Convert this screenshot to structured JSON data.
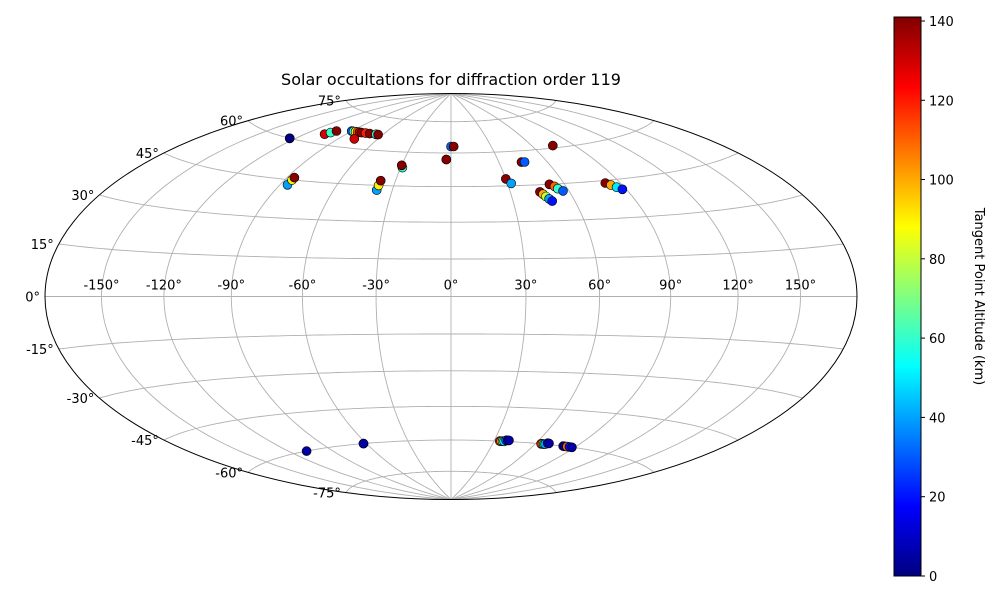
{
  "chart_data": {
    "type": "scatter",
    "projection": "hammer",
    "title": "Solar occultations for diffraction order 119",
    "x_ticks": [
      "-150°",
      "-120°",
      "-90°",
      "-60°",
      "-30°",
      "0°",
      "30°",
      "60°",
      "90°",
      "120°",
      "150°"
    ],
    "y_ticks": [
      "75°",
      "60°",
      "45°",
      "30°",
      "15°",
      "0°",
      "-15°",
      "-30°",
      "-45°",
      "-60°",
      "-75°"
    ],
    "grid": true,
    "colorbar": {
      "label": "Tangent Point Altitude (km)",
      "range": [
        0,
        141
      ],
      "ticks": [
        "0",
        "20",
        "40",
        "60",
        "80",
        "100",
        "120",
        "140"
      ],
      "colormap": "jet",
      "colors": [
        "#000080",
        "#0000ff",
        "#0080ff",
        "#00ffff",
        "#80ff80",
        "#ffff00",
        "#ff8000",
        "#ff0000",
        "#800000"
      ]
    },
    "series": [
      {
        "lon": [
          -124,
          -124
        ],
        "lat": [
          60,
          60
        ],
        "alt": [
          140,
          0
        ]
      },
      {
        "lon": [
          -106,
          -104,
          -102
        ],
        "lat": [
          64,
          65,
          66
        ],
        "alt": [
          130,
          60,
          140
        ]
      },
      {
        "lon": [
          -90,
          -88,
          -86,
          -84,
          -82,
          -80
        ],
        "lat": [
          67,
          67,
          67,
          67,
          67,
          67
        ],
        "alt": [
          30,
          60,
          90,
          110,
          130,
          140
        ]
      },
      {
        "lon": [
          -76,
          -72
        ],
        "lat": [
          67,
          67
        ],
        "alt": [
          120,
          140
        ]
      },
      {
        "lon": [
          -66,
          -64
        ],
        "lat": [
          67,
          67
        ],
        "alt": [
          60,
          140
        ]
      },
      {
        "lon": [
          -78
        ],
        "lat": [
          64
        ],
        "alt": [
          130
        ]
      },
      {
        "lon": [
          -86,
          -86,
          -86
        ],
        "lat": [
          43,
          45,
          46
        ],
        "alt": [
          40,
          90,
          140
        ]
      },
      {
        "lon": [
          -38,
          -38,
          -38
        ],
        "lat": [
          43,
          45,
          47
        ],
        "alt": [
          40,
          90,
          140
        ]
      },
      {
        "lon": [
          -29,
          -30
        ],
        "lat": [
          53,
          54
        ],
        "alt": [
          60,
          140
        ]
      },
      {
        "lon": [
          -3,
          -3
        ],
        "lat": [
          57,
          57
        ],
        "alt": [
          60,
          140
        ]
      },
      {
        "lon": [
          0,
          2
        ],
        "lat": [
          63,
          63
        ],
        "alt": [
          30,
          140
        ]
      },
      {
        "lon": [
          30,
          32
        ],
        "lat": [
          48,
          46
        ],
        "alt": [
          140,
          40
        ]
      },
      {
        "lon": [
          44,
          46
        ],
        "lat": [
          55,
          55
        ],
        "alt": [
          140,
          30
        ]
      },
      {
        "lon": [
          45,
          46,
          47,
          48,
          49
        ],
        "lat": [
          42,
          41,
          40,
          39,
          38
        ],
        "alt": [
          140,
          100,
          80,
          40,
          20
        ]
      },
      {
        "lon": [
          52,
          54,
          55,
          57
        ],
        "lat": [
          45,
          44,
          43,
          42
        ],
        "alt": [
          140,
          110,
          60,
          30
        ]
      },
      {
        "lon": [
          75
        ],
        "lat": [
          61
        ],
        "alt": [
          140
        ]
      },
      {
        "lon": [
          82,
          84,
          86,
          88
        ],
        "lat": [
          44,
          43,
          42,
          41
        ],
        "alt": [
          140,
          100,
          50,
          20
        ]
      },
      {
        "lon": [
          -108
        ],
        "lat": [
          -60
        ],
        "alt": [
          5
        ]
      },
      {
        "lon": [
          -62,
          -62
        ],
        "lat": [
          -60,
          -60
        ],
        "alt": [
          100,
          5
        ]
      },
      {
        "lon": [
          34,
          35,
          36,
          37,
          38,
          39,
          40
        ],
        "lat": [
          -60,
          -60,
          -60,
          -60,
          -59.5,
          -59.5,
          -59.5
        ],
        "alt": [
          120,
          100,
          70,
          50,
          30,
          15,
          5
        ]
      },
      {
        "lon": [
          64,
          65,
          66,
          67,
          68,
          69
        ],
        "lat": [
          -60,
          -60,
          -60,
          -60,
          -59.5,
          -59.5
        ],
        "alt": [
          120,
          100,
          60,
          40,
          20,
          5
        ]
      },
      {
        "lon": [
          81,
          82,
          84,
          86,
          88
        ],
        "lat": [
          -60,
          -60,
          -60,
          -60,
          -60
        ],
        "alt": [
          5,
          5,
          110,
          20,
          5
        ]
      }
    ]
  }
}
